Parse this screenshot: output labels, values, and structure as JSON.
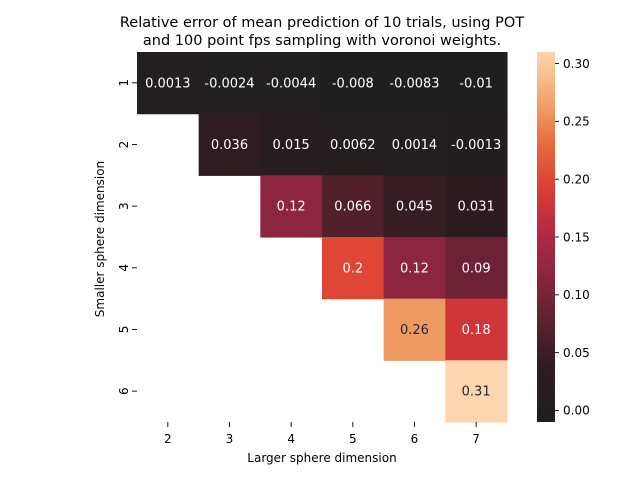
{
  "chart_data": {
    "type": "heatmap",
    "title_lines": [
      "Relative error of mean prediction of 10 trials, using POT",
      "and 100 point fps sampling with voronoi weights."
    ],
    "xlabel": "Larger sphere dimension",
    "ylabel": "Smaller sphere dimension",
    "x_categories": [
      "2",
      "3",
      "4",
      "5",
      "6",
      "7"
    ],
    "y_categories": [
      "1",
      "2",
      "3",
      "4",
      "5",
      "6"
    ],
    "values": [
      [
        0.0013,
        -0.0024,
        -0.0044,
        -0.008,
        -0.0083,
        -0.01
      ],
      [
        null,
        0.036,
        0.015,
        0.0062,
        0.0014,
        -0.0013
      ],
      [
        null,
        null,
        0.12,
        0.066,
        0.045,
        0.031
      ],
      [
        null,
        null,
        null,
        0.2,
        0.12,
        0.09
      ],
      [
        null,
        null,
        null,
        null,
        0.26,
        0.18
      ],
      [
        null,
        null,
        null,
        null,
        null,
        0.31
      ]
    ],
    "annotations": [
      [
        "0.0013",
        "-0.0024",
        "-0.0044",
        "-0.008",
        "-0.0083",
        "-0.01"
      ],
      [
        null,
        "0.036",
        "0.015",
        "0.0062",
        "0.0014",
        "-0.0013"
      ],
      [
        null,
        null,
        "0.12",
        "0.066",
        "0.045",
        "0.031"
      ],
      [
        null,
        null,
        null,
        "0.2",
        "0.12",
        "0.09"
      ],
      [
        null,
        null,
        null,
        null,
        "0.26",
        "0.18"
      ],
      [
        null,
        null,
        null,
        null,
        null,
        "0.31"
      ]
    ],
    "colorbar": {
      "vmin": -0.01,
      "vmax": 0.31,
      "ticks": [
        "0.00",
        "0.05",
        "0.10",
        "0.15",
        "0.20",
        "0.25",
        "0.30"
      ],
      "colormap": "icefire-like (dark center to orange/peach)"
    },
    "grid": false
  }
}
